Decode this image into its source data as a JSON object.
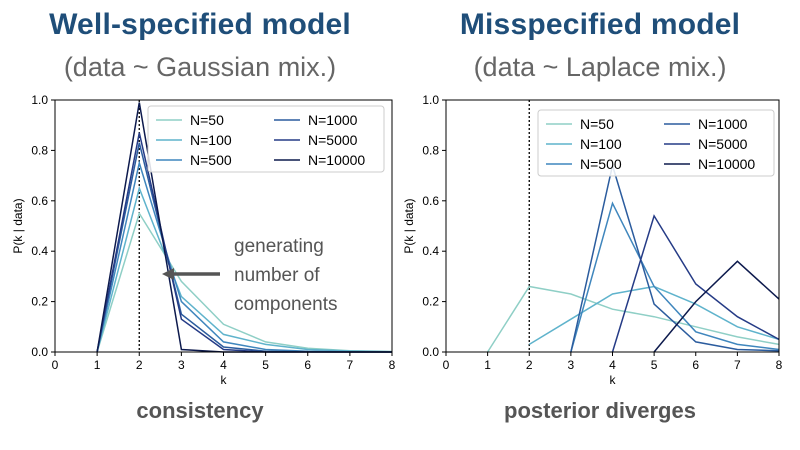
{
  "left": {
    "title": "Well-specified model",
    "subtitle": "(data ~ Gaussian mix.)",
    "caption": "consistency",
    "annotation": [
      "generating",
      "number of",
      "components"
    ]
  },
  "right": {
    "title": "Misspecified model",
    "subtitle": "(data ~ Laplace mix.)",
    "caption": "posterior diverges"
  },
  "colors": {
    "N=50": "#8fcfc6",
    "N=100": "#5fb3cc",
    "N=500": "#3f86bd",
    "N=1000": "#2b5c9e",
    "N=5000": "#253b86",
    "N=10000": "#0d1a4d",
    "title": "#1f4e79",
    "annotation_arrow": "#555555"
  },
  "chart_data": [
    {
      "type": "line",
      "xlabel": "k",
      "ylabel": "P(k | data)",
      "xlim": [
        0,
        8
      ],
      "ylim": [
        0,
        1.0
      ],
      "xticks": [
        0,
        1,
        2,
        3,
        4,
        5,
        6,
        7,
        8
      ],
      "yticks": [
        0.0,
        0.2,
        0.4,
        0.6,
        0.8,
        1.0
      ],
      "ytick_labels": [
        "0.0",
        "0.2",
        "0.4",
        "0.6",
        "0.8",
        "1.0"
      ],
      "reference_line_x": 2,
      "legend_position": "top-right",
      "x": [
        1,
        2,
        3,
        4,
        5,
        6,
        7,
        8
      ],
      "series": [
        {
          "name": "N=50",
          "values": [
            0.0,
            0.55,
            0.28,
            0.11,
            0.04,
            0.015,
            0.005,
            0.002
          ]
        },
        {
          "name": "N=100",
          "values": [
            0.0,
            0.65,
            0.22,
            0.07,
            0.03,
            0.01,
            0.004,
            0.001
          ]
        },
        {
          "name": "N=500",
          "values": [
            0.0,
            0.75,
            0.2,
            0.04,
            0.01,
            0.003,
            0.001,
            0.0
          ]
        },
        {
          "name": "N=1000",
          "values": [
            0.0,
            0.83,
            0.15,
            0.02,
            0.003,
            0.001,
            0.0,
            0.0
          ]
        },
        {
          "name": "N=5000",
          "values": [
            0.0,
            0.87,
            0.13,
            0.01,
            0.0,
            0.0,
            0.0,
            0.0
          ]
        },
        {
          "name": "N=10000",
          "values": [
            0.0,
            0.99,
            0.01,
            0.0,
            0.0,
            0.0,
            0.0,
            0.0
          ]
        }
      ]
    },
    {
      "type": "line",
      "xlabel": "k",
      "ylabel": "P(k | data)",
      "xlim": [
        0,
        8
      ],
      "ylim": [
        0,
        1.0
      ],
      "xticks": [
        0,
        1,
        2,
        3,
        4,
        5,
        6,
        7,
        8
      ],
      "yticks": [
        0.0,
        0.2,
        0.4,
        0.6,
        0.8,
        1.0
      ],
      "ytick_labels": [
        "0.0",
        "0.2",
        "0.4",
        "0.6",
        "0.8",
        "1.0"
      ],
      "reference_line_x": 2,
      "legend_position": "top-right",
      "series": [
        {
          "name": "N=50",
          "x": [
            1,
            2,
            3,
            4,
            5,
            6,
            7,
            8
          ],
          "values": [
            0.0,
            0.26,
            0.23,
            0.17,
            0.14,
            0.1,
            0.06,
            0.03
          ]
        },
        {
          "name": "N=100",
          "x": [
            2,
            3,
            4,
            5,
            6,
            7,
            8
          ],
          "values": [
            0.03,
            0.13,
            0.23,
            0.26,
            0.19,
            0.1,
            0.05
          ]
        },
        {
          "name": "N=500",
          "x": [
            3,
            4,
            5,
            6,
            7,
            8
          ],
          "values": [
            0.0,
            0.59,
            0.26,
            0.08,
            0.03,
            0.01
          ]
        },
        {
          "name": "N=1000",
          "x": [
            3,
            4,
            5,
            6,
            7,
            8
          ],
          "values": [
            0.0,
            0.74,
            0.19,
            0.04,
            0.01,
            0.005
          ]
        },
        {
          "name": "N=5000",
          "x": [
            4,
            5,
            6,
            7,
            8
          ],
          "values": [
            0.0,
            0.54,
            0.27,
            0.14,
            0.05
          ]
        },
        {
          "name": "N=10000",
          "x": [
            5,
            6,
            7,
            8
          ],
          "values": [
            0.0,
            0.2,
            0.36,
            0.21
          ]
        }
      ]
    }
  ]
}
